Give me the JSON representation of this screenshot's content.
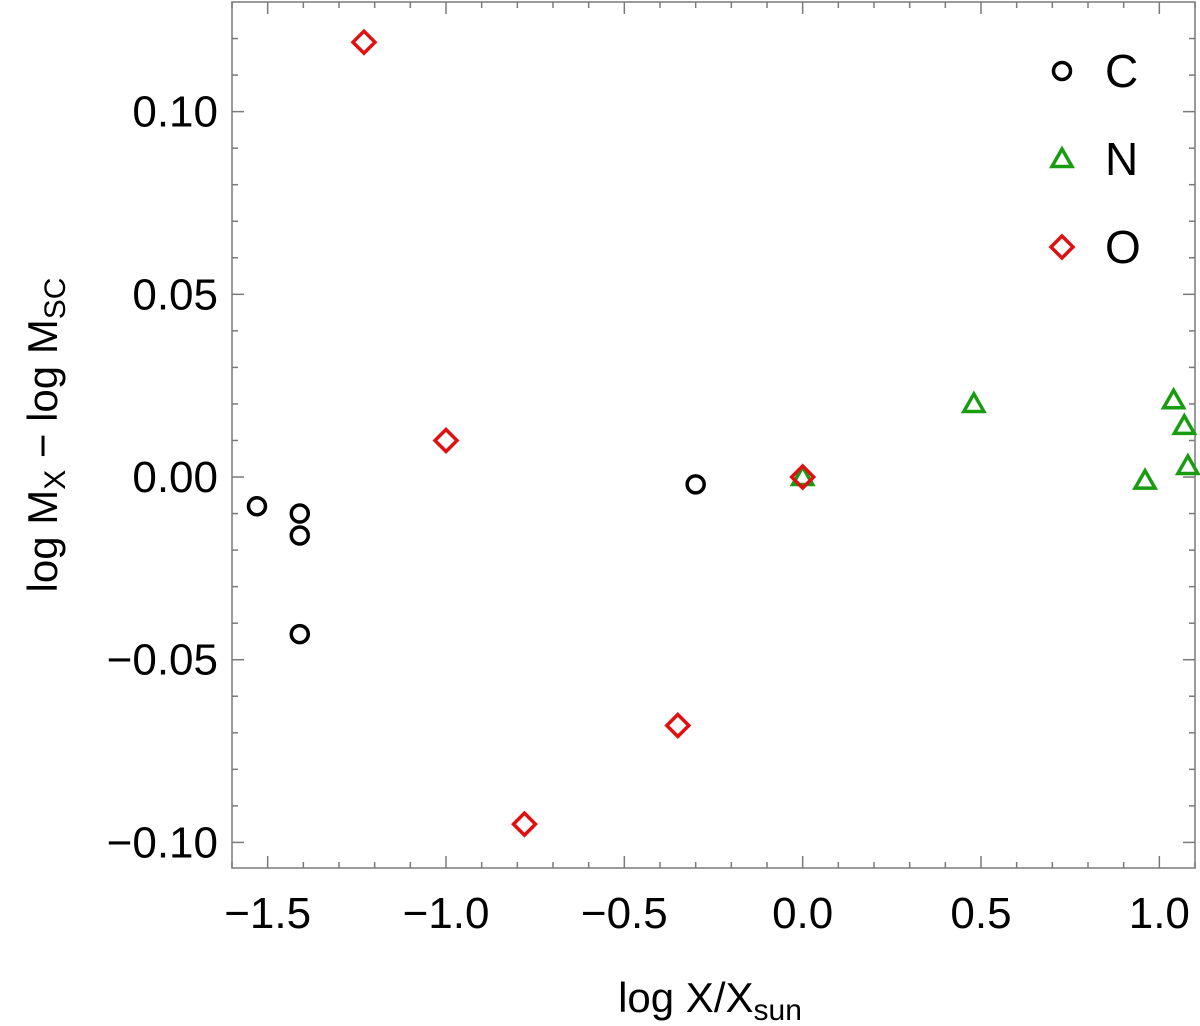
{
  "chart_data": {
    "type": "scatter",
    "title": "",
    "xlabel_parts": {
      "base": "log X/X",
      "sub": "sun"
    },
    "ylabel_parts": {
      "left": "log M",
      "left_sub": "X",
      "minus": " − log M",
      "right_sub": "SC"
    },
    "xlim": [
      -1.6,
      1.1
    ],
    "ylim": [
      -0.107,
      0.13
    ],
    "x_ticks": [
      -1.5,
      -1.0,
      -0.5,
      0.0,
      0.5,
      1.0
    ],
    "x_tick_labels": [
      "−1.5",
      "−1.0",
      "−0.5",
      "0.0",
      "0.5",
      "1.0"
    ],
    "y_ticks": [
      -0.1,
      -0.05,
      0.0,
      0.05,
      0.1
    ],
    "y_tick_labels": [
      "−0.10",
      "−0.05",
      "0.00",
      "0.05",
      "0.10"
    ],
    "grid": false,
    "legend_position": "top-right",
    "series": [
      {
        "name": "C",
        "marker": "circle",
        "color": "#000000",
        "points": [
          [
            -1.53,
            -0.008
          ],
          [
            -1.41,
            -0.01
          ],
          [
            -1.41,
            -0.016
          ],
          [
            -1.41,
            -0.043
          ],
          [
            -0.3,
            -0.002
          ]
        ]
      },
      {
        "name": "N",
        "marker": "triangle",
        "color": "#1a9c12",
        "points": [
          [
            0.0,
            0.0
          ],
          [
            0.48,
            0.02
          ],
          [
            0.96,
            -0.001
          ],
          [
            1.04,
            0.021
          ],
          [
            1.07,
            0.014
          ],
          [
            1.08,
            0.003
          ]
        ]
      },
      {
        "name": "O",
        "marker": "diamond",
        "color": "#e01010",
        "points": [
          [
            -1.23,
            0.119
          ],
          [
            -1.0,
            0.01
          ],
          [
            -0.78,
            -0.095
          ],
          [
            -0.35,
            -0.068
          ],
          [
            0.0,
            0.0
          ]
        ]
      }
    ]
  }
}
